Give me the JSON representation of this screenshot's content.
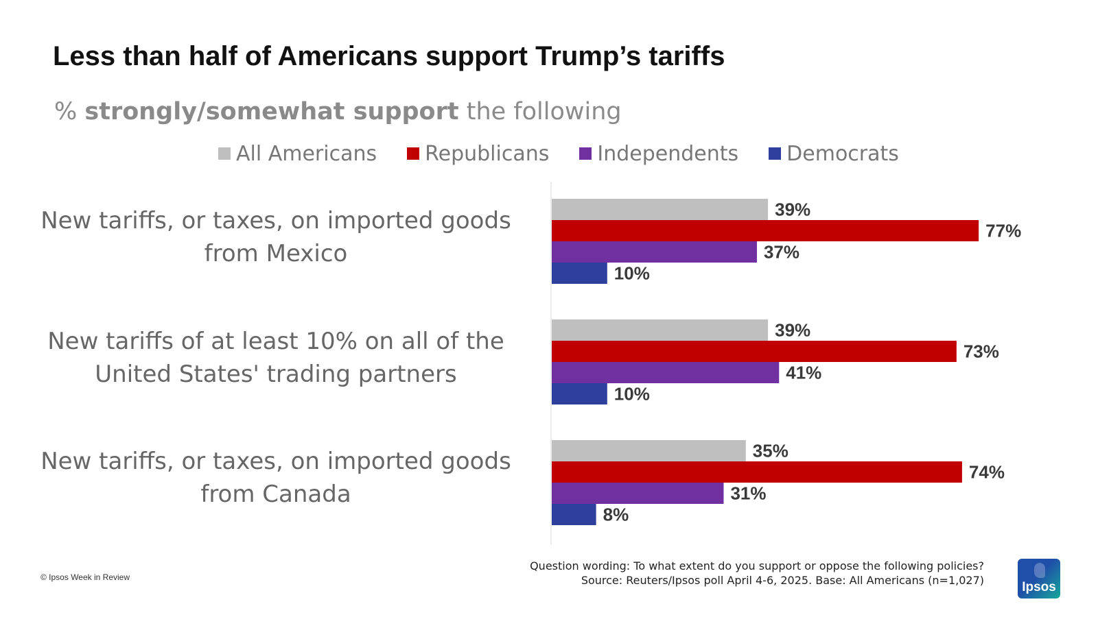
{
  "header": {
    "title": "Less than half of Americans support Trump’s tariffs",
    "subtitle_prefix": "% ",
    "subtitle_bold": "strongly/somewhat support",
    "subtitle_suffix": " the following"
  },
  "legend": [
    {
      "label": "All Americans",
      "color": "#bfbfbf"
    },
    {
      "label": "Republicans",
      "color": "#c00000"
    },
    {
      "label": "Independents",
      "color": "#7030a0"
    },
    {
      "label": "Democrats",
      "color": "#2e3f9e"
    }
  ],
  "chart_data": {
    "type": "bar",
    "orientation": "horizontal",
    "categories": [
      [
        "New tariffs, or taxes, on imported goods",
        "from Mexico"
      ],
      [
        "New tariffs of at least 10% on all of the",
        "United States' trading partners"
      ],
      [
        "New tariffs, or taxes, on imported goods",
        "from Canada"
      ]
    ],
    "series": [
      {
        "name": "All Americans",
        "color": "#bfbfbf",
        "values": [
          39,
          39,
          35
        ],
        "labels": [
          "39%",
          "39%",
          "35%"
        ]
      },
      {
        "name": "Republicans",
        "color": "#c00000",
        "values": [
          77,
          73,
          74
        ],
        "labels": [
          "77%",
          "73%",
          "74%"
        ]
      },
      {
        "name": "Independents",
        "color": "#7030a0",
        "values": [
          37,
          41,
          31
        ],
        "labels": [
          "37%",
          "41%",
          "31%"
        ]
      },
      {
        "name": "Democrats",
        "color": "#2e3f9e",
        "values": [
          10,
          10,
          8
        ],
        "labels": [
          "10%",
          "10%",
          "8%"
        ]
      }
    ],
    "xlim": [
      0,
      100
    ],
    "grid": false,
    "legend_position": "top"
  },
  "footer": {
    "copyright": "© Ipsos Week in Review",
    "question_wording": "Question wording: To what extent do you support or oppose the following policies?",
    "source": "Source: Reuters/Ipsos poll April 4-6, 2025. Base: All Americans (n=1,027)",
    "logo_text": "Ipsos"
  }
}
